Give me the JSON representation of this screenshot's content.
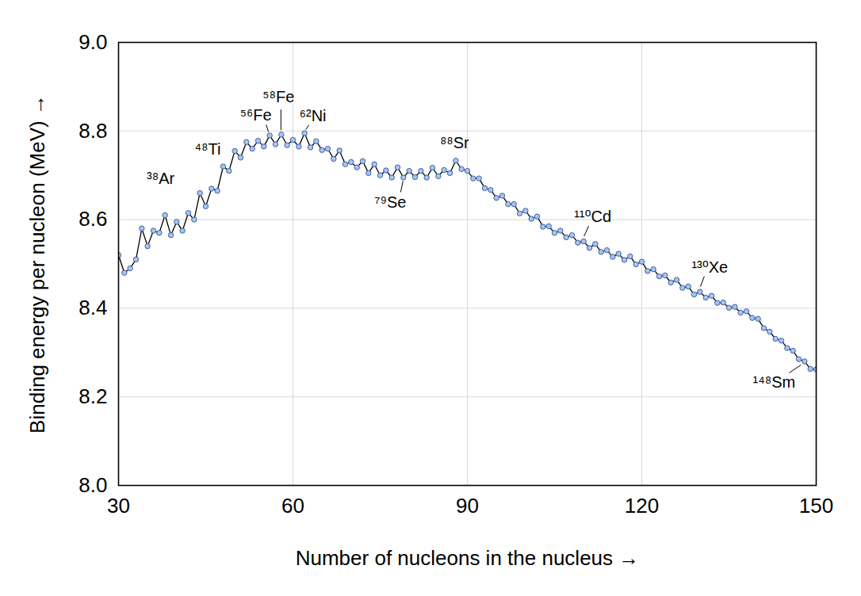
{
  "chart_data": {
    "type": "line",
    "x_label": "Number of nucleons in the nucleus",
    "y_label": "Binding energy per nucleon (MeV)",
    "x": [
      30,
      31,
      32,
      33,
      34,
      35,
      36,
      37,
      38,
      39,
      40,
      41,
      42,
      43,
      44,
      45,
      46,
      47,
      48,
      49,
      50,
      51,
      52,
      53,
      54,
      55,
      56,
      57,
      58,
      59,
      60,
      61,
      62,
      63,
      64,
      65,
      66,
      67,
      68,
      69,
      70,
      71,
      72,
      73,
      74,
      75,
      76,
      77,
      78,
      79,
      80,
      81,
      82,
      83,
      84,
      85,
      86,
      87,
      88,
      89,
      90,
      91,
      92,
      93,
      94,
      95,
      96,
      97,
      98,
      99,
      100,
      101,
      102,
      103,
      104,
      105,
      106,
      107,
      108,
      109,
      110,
      111,
      112,
      113,
      114,
      115,
      116,
      117,
      118,
      119,
      120,
      121,
      122,
      123,
      124,
      125,
      126,
      127,
      128,
      129,
      130,
      131,
      132,
      133,
      134,
      135,
      136,
      137,
      138,
      139,
      140,
      141,
      142,
      143,
      144,
      145,
      146,
      147,
      148,
      149,
      150
    ],
    "values": [
      8.52,
      8.48,
      8.49,
      8.51,
      8.58,
      8.54,
      8.575,
      8.57,
      8.61,
      8.565,
      8.595,
      8.575,
      8.615,
      8.6,
      8.66,
      8.63,
      8.67,
      8.665,
      8.72,
      8.71,
      8.755,
      8.74,
      8.775,
      8.76,
      8.778,
      8.765,
      8.79,
      8.77,
      8.792,
      8.768,
      8.78,
      8.765,
      8.795,
      8.763,
      8.777,
      8.757,
      8.76,
      8.737,
      8.756,
      8.725,
      8.73,
      8.718,
      8.732,
      8.705,
      8.725,
      8.7,
      8.711,
      8.695,
      8.718,
      8.695,
      8.71,
      8.696,
      8.71,
      8.695,
      8.717,
      8.698,
      8.712,
      8.705,
      8.733,
      8.714,
      8.71,
      8.693,
      8.693,
      8.671,
      8.667,
      8.649,
      8.654,
      8.635,
      8.635,
      8.614,
      8.62,
      8.602,
      8.607,
      8.584,
      8.585,
      8.57,
      8.575,
      8.56,
      8.565,
      8.548,
      8.551,
      8.536,
      8.545,
      8.527,
      8.531,
      8.516,
      8.523,
      8.509,
      8.517,
      8.499,
      8.505,
      8.484,
      8.488,
      8.472,
      8.474,
      8.458,
      8.464,
      8.446,
      8.449,
      8.431,
      8.437,
      8.424,
      8.428,
      8.412,
      8.413,
      8.401,
      8.403,
      8.39,
      8.393,
      8.378,
      8.376,
      8.355,
      8.347,
      8.331,
      8.327,
      8.31,
      8.304,
      8.285,
      8.28,
      8.263,
      8.262
    ],
    "color": "#a9c4ee",
    "marker": "circle",
    "line_style": "solid",
    "xlim": [
      30,
      150
    ],
    "xticks": [
      30,
      60,
      90,
      120,
      150
    ],
    "ylim": [
      8.0,
      9.0
    ],
    "yticks": [
      {
        "value": 8.0,
        "label": "8.0"
      },
      8.2,
      8.4,
      8.6,
      8.8,
      {
        "value": 9.0,
        "label": "9.0"
      }
    ],
    "grid": true,
    "annotations": [
      {
        "text": "³⁸Ar",
        "x": 38
      },
      {
        "text": "⁴⁸Ti",
        "x": 48
      },
      {
        "text": "⁵⁶Fe",
        "x": 56
      },
      {
        "text": "⁵⁸Fe",
        "x": 58
      },
      {
        "text": "⁶²Ni",
        "x": 62
      },
      {
        "text": "⁷⁹Se",
        "x": 79
      },
      {
        "text": "⁸⁸Sr",
        "x": 88
      },
      {
        "text": "¹¹⁰Cd",
        "x": 110
      },
      {
        "text": "¹³⁰Xe",
        "x": 130
      },
      {
        "text": "¹⁴⁸Sm",
        "x": 148
      }
    ]
  }
}
